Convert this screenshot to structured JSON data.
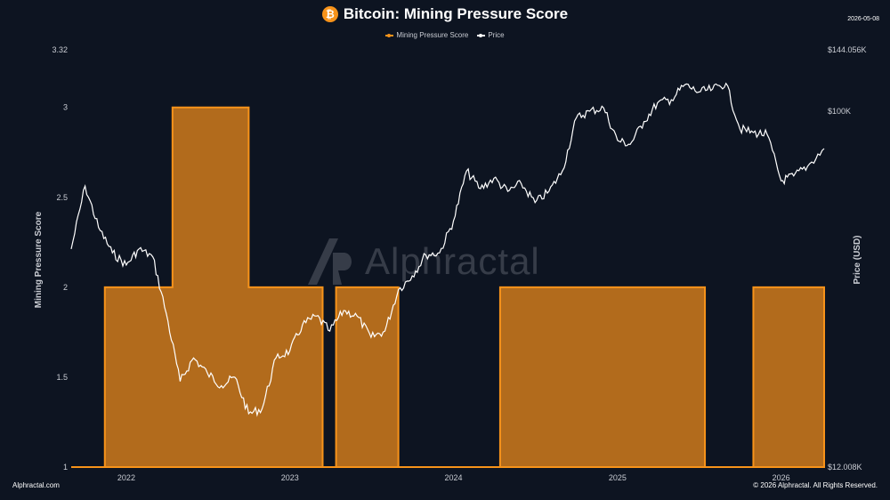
{
  "header": {
    "icon_glyph": "₿",
    "icon_name": "bitcoin-icon",
    "title": "Bitcoin: Mining Pressure Score",
    "date": "2026-05-08"
  },
  "footer": {
    "left": "Alphractal.com",
    "right": "© 2026 Alphractal. All Rights Reserved."
  },
  "watermark": {
    "text": "Alphractal"
  },
  "chart_data": {
    "type": "area",
    "title": "Bitcoin: Mining Pressure Score",
    "ylabel": "Mining Pressure Score",
    "y2label": "Price (USD)",
    "ylim": [
      1,
      3.32
    ],
    "y2lim": [
      12008,
      144056
    ],
    "y2scale": "log",
    "xlim": [
      "2021-10-01",
      "2026-05-08"
    ],
    "x_ticks": [
      "2022",
      "2023",
      "2024",
      "2025",
      "2026"
    ],
    "y_ticks": [
      "1",
      "1.5",
      "2",
      "2.5",
      "3",
      "3.32"
    ],
    "y2_ticks": [
      "$12.008K",
      "$100K",
      "$144.056K"
    ],
    "grid": false,
    "legend_position": "top-center",
    "colors": {
      "score": "#f7931a",
      "score_fill": "#b26b1c",
      "price": "#ffffff",
      "background": "#0d1421"
    },
    "series": [
      {
        "name": "Mining Pressure Score",
        "axis": "left",
        "style": "step-area",
        "points": [
          [
            "2021-10-01",
            1
          ],
          [
            "2021-12-15",
            2
          ],
          [
            "2022-05-15",
            3
          ],
          [
            "2022-11-01",
            2
          ],
          [
            "2023-04-15",
            1
          ],
          [
            "2023-05-15",
            2
          ],
          [
            "2023-10-01",
            1
          ],
          [
            "2024-05-15",
            2
          ],
          [
            "2025-08-15",
            1
          ],
          [
            "2025-12-01",
            2
          ],
          [
            "2026-05-08",
            2
          ]
        ]
      },
      {
        "name": "Price",
        "axis": "right",
        "style": "line",
        "points": [
          [
            "2021-10-01",
            44000
          ],
          [
            "2021-11-01",
            64000
          ],
          [
            "2021-12-01",
            50000
          ],
          [
            "2022-01-01",
            43000
          ],
          [
            "2022-02-01",
            40000
          ],
          [
            "2022-03-01",
            44000
          ],
          [
            "2022-04-01",
            42000
          ],
          [
            "2022-05-01",
            30000
          ],
          [
            "2022-06-01",
            20000
          ],
          [
            "2022-07-01",
            23000
          ],
          [
            "2022-08-01",
            21000
          ],
          [
            "2022-09-01",
            19500
          ],
          [
            "2022-10-01",
            20500
          ],
          [
            "2022-11-01",
            16500
          ],
          [
            "2022-12-01",
            17000
          ],
          [
            "2023-01-01",
            23000
          ],
          [
            "2023-02-01",
            24000
          ],
          [
            "2023-03-01",
            28000
          ],
          [
            "2023-04-01",
            29500
          ],
          [
            "2023-05-01",
            27000
          ],
          [
            "2023-06-01",
            30500
          ],
          [
            "2023-07-01",
            29500
          ],
          [
            "2023-08-01",
            26000
          ],
          [
            "2023-09-01",
            27000
          ],
          [
            "2023-10-01",
            34500
          ],
          [
            "2023-11-01",
            37500
          ],
          [
            "2023-12-01",
            42500
          ],
          [
            "2024-01-01",
            43000
          ],
          [
            "2024-02-01",
            52000
          ],
          [
            "2024-03-01",
            70000
          ],
          [
            "2024-04-01",
            63000
          ],
          [
            "2024-05-01",
            67000
          ],
          [
            "2024-06-01",
            62000
          ],
          [
            "2024-07-01",
            65000
          ],
          [
            "2024-08-01",
            58000
          ],
          [
            "2024-09-01",
            62000
          ],
          [
            "2024-10-01",
            70000
          ],
          [
            "2024-11-01",
            96000
          ],
          [
            "2024-12-01",
            100000
          ],
          [
            "2025-01-01",
            102000
          ],
          [
            "2025-02-01",
            84000
          ],
          [
            "2025-03-01",
            82000
          ],
          [
            "2025-04-01",
            94000
          ],
          [
            "2025-05-01",
            105000
          ],
          [
            "2025-06-01",
            107000
          ],
          [
            "2025-07-01",
            117000
          ],
          [
            "2025-08-01",
            112000
          ],
          [
            "2025-09-01",
            114000
          ],
          [
            "2025-10-01",
            118000
          ],
          [
            "2025-11-01",
            90000
          ],
          [
            "2025-12-01",
            88000
          ],
          [
            "2026-01-01",
            87000
          ],
          [
            "2026-02-01",
            66000
          ],
          [
            "2026-03-01",
            68000
          ],
          [
            "2026-04-01",
            72000
          ],
          [
            "2026-05-08",
            80000
          ]
        ]
      }
    ]
  }
}
